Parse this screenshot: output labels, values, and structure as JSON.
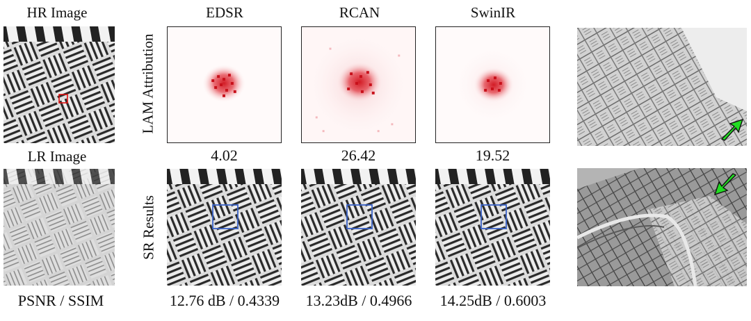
{
  "columns": {
    "hr": "HR Image",
    "lr": "LR Image",
    "edsr": "EDSR",
    "rcan": "RCAN",
    "swinir": "SwinIR"
  },
  "row_labels": {
    "lam": "LAM Attribution",
    "sr": "SR Results"
  },
  "lam_scores": {
    "edsr": "4.02",
    "rcan": "26.42",
    "swinir": "19.52"
  },
  "metrics": {
    "header": "PSNR / SSIM",
    "edsr": "12.76 dB / 0.4339",
    "rcan": "13.23dB / 0.4966",
    "swinir": "14.25dB / 0.6003"
  },
  "colors": {
    "roi_red": "#e01010",
    "roi_blue": "#3a63c8",
    "arrow_green": "#22dd22",
    "attribution_red": "#d0101a"
  },
  "icons": [
    "arrow-up-right-icon",
    "arrow-down-left-icon"
  ]
}
